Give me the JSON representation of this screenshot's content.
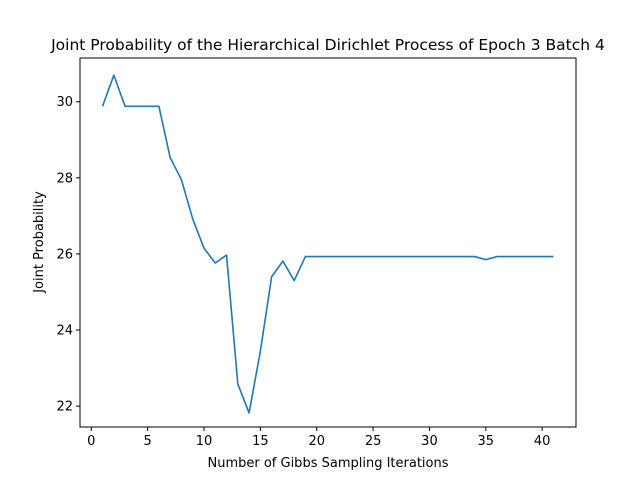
{
  "chart_data": {
    "type": "line",
    "title": "Joint Probability of the Hierarchical Dirichlet Process of Epoch 3 Batch 4",
    "xlabel": "Number of Gibbs Sampling Iterations",
    "ylabel": "Joint Probability",
    "xlim": [
      -1,
      43
    ],
    "ylim": [
      21.45,
      31.15
    ],
    "xticks": [
      0,
      5,
      10,
      15,
      20,
      25,
      30,
      35,
      40
    ],
    "yticks": [
      22,
      24,
      26,
      28,
      30
    ],
    "grid": false,
    "line_color": "#1f77b4",
    "x": [
      1,
      2,
      3,
      4,
      5,
      6,
      7,
      8,
      9,
      10,
      11,
      12,
      13,
      14,
      15,
      16,
      17,
      18,
      19,
      20,
      21,
      22,
      23,
      24,
      25,
      26,
      27,
      28,
      29,
      30,
      31,
      32,
      33,
      34,
      35,
      36,
      37,
      38,
      39,
      40,
      41
    ],
    "y": [
      29.88,
      30.7,
      29.88,
      29.88,
      29.88,
      29.88,
      28.53,
      27.95,
      26.92,
      26.15,
      25.76,
      25.97,
      22.58,
      21.82,
      23.44,
      25.4,
      25.81,
      25.3,
      25.93,
      25.93,
      25.93,
      25.93,
      25.93,
      25.93,
      25.93,
      25.93,
      25.93,
      25.93,
      25.93,
      25.93,
      25.93,
      25.93,
      25.93,
      25.93,
      25.85,
      25.93,
      25.93,
      25.93,
      25.93,
      25.93,
      25.93
    ]
  }
}
